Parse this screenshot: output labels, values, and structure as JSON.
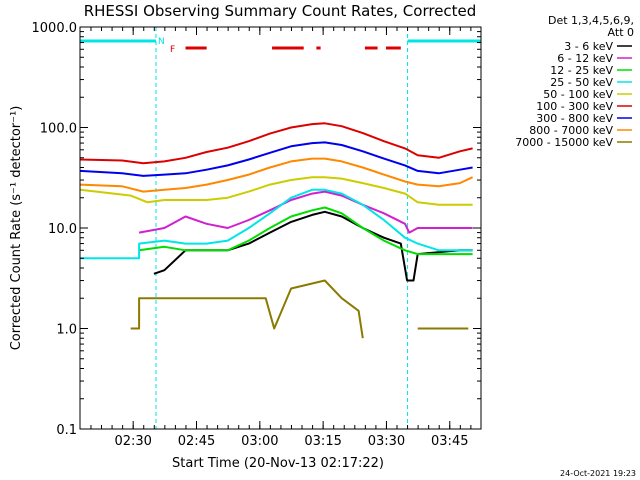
{
  "chart_data": {
    "type": "line",
    "title": "RHESSI Observing Summary Count Rates, Corrected",
    "xlabel": "Start Time (20-Nov-13 02:17:22)",
    "ylabel": "Corrected Count Rate (s⁻¹ detector⁻¹)",
    "yscale": "log",
    "ylim": [
      0.1,
      1000
    ],
    "xlim_minutes": [
      0,
      95
    ],
    "x_ticks": [
      {
        "label": "02:30",
        "minute": 12.6
      },
      {
        "label": "02:45",
        "minute": 27.6
      },
      {
        "label": "03:00",
        "minute": 42.6
      },
      {
        "label": "03:15",
        "minute": 57.6
      },
      {
        "label": "03:30",
        "minute": 72.6
      },
      {
        "label": "03:45",
        "minute": 87.6
      }
    ],
    "y_ticks": [
      "0.1",
      "1.0",
      "10.0",
      "100.0",
      "1000.0"
    ],
    "legend_header": [
      "Det 1,3,4,5,6,9,",
      "Att 0"
    ],
    "flags": {
      "N": "N",
      "F": "F"
    },
    "footer_date": "24-Oct-2021 19:23",
    "night_intervals": [
      [
        0,
        18
      ],
      [
        77.6,
        95
      ]
    ],
    "flare_segments": [
      [
        25,
        30
      ],
      [
        45.5,
        53
      ],
      [
        56,
        57
      ],
      [
        67.5,
        70.5
      ],
      [
        72.5,
        76
      ]
    ],
    "series": [
      {
        "name": "3 - 6 keV",
        "color": "#000000",
        "points": [
          [
            0,
            0
          ],
          [
            17.5,
            0
          ],
          [
            17.5,
            3.5
          ],
          [
            20,
            3.8
          ],
          [
            25,
            6
          ],
          [
            30,
            6
          ],
          [
            35,
            6
          ],
          [
            40,
            7
          ],
          [
            45,
            9
          ],
          [
            50,
            11.5
          ],
          [
            55,
            13.5
          ],
          [
            58,
            14.5
          ],
          [
            62,
            13
          ],
          [
            67,
            10
          ],
          [
            72,
            8
          ],
          [
            76,
            7
          ],
          [
            77.5,
            3
          ],
          [
            79,
            3
          ],
          [
            80,
            5.5
          ],
          [
            90,
            6
          ],
          [
            93,
            6
          ]
        ]
      },
      {
        "name": "6 - 12 keV",
        "color": "#d020d0",
        "points": [
          [
            0,
            0
          ],
          [
            14,
            0
          ],
          [
            14,
            9
          ],
          [
            20,
            10
          ],
          [
            25,
            13
          ],
          [
            30,
            11
          ],
          [
            35,
            10
          ],
          [
            40,
            12
          ],
          [
            45,
            15
          ],
          [
            50,
            19
          ],
          [
            55,
            22
          ],
          [
            58,
            23
          ],
          [
            62,
            21
          ],
          [
            67,
            17
          ],
          [
            72,
            14
          ],
          [
            77,
            11
          ],
          [
            78,
            9
          ],
          [
            80,
            10
          ],
          [
            93,
            10
          ]
        ]
      },
      {
        "name": "12 - 25 keV",
        "color": "#00dd00",
        "points": [
          [
            0,
            0
          ],
          [
            14,
            0
          ],
          [
            14,
            6
          ],
          [
            20,
            6.5
          ],
          [
            25,
            6
          ],
          [
            30,
            6
          ],
          [
            35,
            6
          ],
          [
            40,
            7.5
          ],
          [
            45,
            10
          ],
          [
            50,
            13
          ],
          [
            55,
            15
          ],
          [
            58,
            16
          ],
          [
            62,
            14
          ],
          [
            67,
            10
          ],
          [
            72,
            7.5
          ],
          [
            77,
            6
          ],
          [
            80,
            5.5
          ],
          [
            85,
            5.5
          ],
          [
            93,
            5.5
          ]
        ]
      },
      {
        "name": "25 - 50 keV",
        "color": "#00e5e5",
        "points": [
          [
            0,
            5
          ],
          [
            14,
            5
          ],
          [
            14,
            7
          ],
          [
            20,
            7.5
          ],
          [
            25,
            7
          ],
          [
            30,
            7
          ],
          [
            35,
            7.5
          ],
          [
            40,
            10
          ],
          [
            45,
            14
          ],
          [
            50,
            20
          ],
          [
            55,
            24
          ],
          [
            58,
            24
          ],
          [
            62,
            22
          ],
          [
            67,
            17
          ],
          [
            72,
            12
          ],
          [
            77,
            8
          ],
          [
            80,
            7
          ],
          [
            85,
            6
          ],
          [
            93,
            6
          ]
        ]
      },
      {
        "name": "50 - 100 keV",
        "color": "#cccc00",
        "points": [
          [
            0,
            24
          ],
          [
            12,
            21
          ],
          [
            16,
            18
          ],
          [
            20,
            19
          ],
          [
            25,
            19
          ],
          [
            30,
            19
          ],
          [
            35,
            20
          ],
          [
            40,
            23
          ],
          [
            45,
            27
          ],
          [
            50,
            30
          ],
          [
            55,
            32
          ],
          [
            58,
            32
          ],
          [
            62,
            31
          ],
          [
            67,
            28
          ],
          [
            72,
            25
          ],
          [
            77,
            22
          ],
          [
            80,
            18
          ],
          [
            85,
            17
          ],
          [
            93,
            17
          ]
        ]
      },
      {
        "name": "100 - 300 keV",
        "color": "#dd0000",
        "points": [
          [
            0,
            48
          ],
          [
            10,
            47
          ],
          [
            15,
            44
          ],
          [
            20,
            46
          ],
          [
            25,
            50
          ],
          [
            30,
            57
          ],
          [
            35,
            63
          ],
          [
            40,
            73
          ],
          [
            45,
            87
          ],
          [
            50,
            100
          ],
          [
            55,
            108
          ],
          [
            58,
            110
          ],
          [
            62,
            103
          ],
          [
            67,
            88
          ],
          [
            72,
            73
          ],
          [
            77,
            62
          ],
          [
            80,
            53
          ],
          [
            85,
            50
          ],
          [
            90,
            58
          ],
          [
            93,
            62
          ]
        ]
      },
      {
        "name": "300 - 800 keV",
        "color": "#0000ee",
        "points": [
          [
            0,
            37
          ],
          [
            10,
            35
          ],
          [
            15,
            33
          ],
          [
            20,
            34
          ],
          [
            25,
            35
          ],
          [
            30,
            38
          ],
          [
            35,
            42
          ],
          [
            40,
            48
          ],
          [
            45,
            56
          ],
          [
            50,
            65
          ],
          [
            55,
            70
          ],
          [
            58,
            71
          ],
          [
            62,
            67
          ],
          [
            67,
            58
          ],
          [
            72,
            49
          ],
          [
            77,
            42
          ],
          [
            80,
            37
          ],
          [
            85,
            35
          ],
          [
            90,
            38
          ],
          [
            93,
            40
          ]
        ]
      },
      {
        "name": "800 - 7000 keV",
        "color": "#ff8800",
        "points": [
          [
            0,
            27
          ],
          [
            10,
            26
          ],
          [
            15,
            23
          ],
          [
            20,
            24
          ],
          [
            25,
            25
          ],
          [
            30,
            27
          ],
          [
            35,
            30
          ],
          [
            40,
            34
          ],
          [
            45,
            40
          ],
          [
            50,
            46
          ],
          [
            55,
            49
          ],
          [
            58,
            49
          ],
          [
            62,
            46
          ],
          [
            67,
            40
          ],
          [
            72,
            34
          ],
          [
            77,
            29
          ],
          [
            80,
            27
          ],
          [
            85,
            26
          ],
          [
            90,
            28
          ],
          [
            93,
            32
          ]
        ]
      },
      {
        "name": "7000 - 15000 keV",
        "color": "#8b7a00",
        "points": [
          [
            0,
            0
          ],
          [
            12,
            0
          ],
          [
            12,
            1
          ],
          [
            14,
            1
          ],
          [
            14,
            2
          ],
          [
            20,
            2
          ],
          [
            40,
            2
          ],
          [
            44,
            2
          ],
          [
            46,
            1
          ],
          [
            50,
            2.5
          ],
          [
            58,
            3
          ],
          [
            62,
            2
          ],
          [
            66,
            1.5
          ],
          [
            67,
            0.8
          ],
          [
            68,
            0
          ],
          [
            80,
            0
          ],
          [
            80,
            1
          ],
          [
            92,
            1
          ],
          [
            92,
            0
          ],
          [
            93,
            0
          ]
        ]
      }
    ]
  }
}
